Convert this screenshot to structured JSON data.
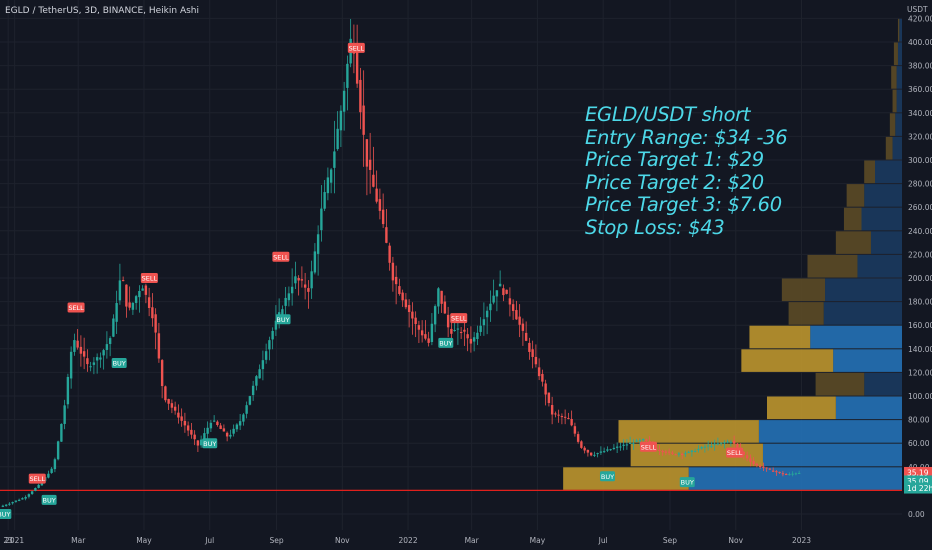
{
  "header": {
    "title": "EGLD / TetherUS, 3D, BINANCE, Heikin Ashi"
  },
  "annotation": [
    "EGLD/USDT short",
    "Entry Range: $34 -36",
    "Price Target 1: $29",
    "Price Target 2: $20",
    "Price Target 3: $7.60",
    "Stop Loss: $43"
  ],
  "colors": {
    "background": "#131722",
    "up": "#26a69a",
    "down": "#ef5350",
    "annotation": "#4dd8e8",
    "horizontal_line": "#e0201c",
    "grid": "#1e222d",
    "axis_text": "#b2b5be"
  },
  "chart_data": {
    "type": "candlestick",
    "style": "Heikin Ashi",
    "symbol": "EGLD / TetherUS",
    "interval": "3D",
    "exchange": "BINANCE",
    "price_unit": "USDT",
    "ylim": [
      -8,
      432
    ],
    "y_ticks": [
      "0.00",
      "20.00",
      "40.00",
      "60.00",
      "80.00",
      "100.00",
      "120.00",
      "140.00",
      "160.00",
      "180.00",
      "200.00",
      "220.00",
      "240.00",
      "260.00",
      "280.00",
      "300.00",
      "320.00",
      "340.00",
      "360.00",
      "380.00",
      "400.00",
      "420.00"
    ],
    "x_ticks": [
      "23",
      "2021",
      "Mar",
      "May",
      "Jul",
      "Sep",
      "Nov",
      "2022",
      "Mar",
      "May",
      "Jul",
      "Sep",
      "Nov",
      "2023"
    ],
    "price_path": [
      [
        "2020-12-20",
        6
      ],
      [
        "2021-01-12",
        14
      ],
      [
        "2021-01-25",
        24
      ],
      [
        "2021-02-08",
        40
      ],
      [
        "2021-02-18",
        90
      ],
      [
        "2021-02-26",
        150
      ],
      [
        "2021-03-12",
        125
      ],
      [
        "2021-03-24",
        135
      ],
      [
        "2021-04-02",
        150
      ],
      [
        "2021-04-12",
        205
      ],
      [
        "2021-04-18",
        170
      ],
      [
        "2021-05-01",
        195
      ],
      [
        "2021-05-12",
        165
      ],
      [
        "2021-05-21",
        100
      ],
      [
        "2021-06-10",
        75
      ],
      [
        "2021-06-22",
        58
      ],
      [
        "2021-07-05",
        80
      ],
      [
        "2021-07-20",
        65
      ],
      [
        "2021-08-01",
        80
      ],
      [
        "2021-08-15",
        115
      ],
      [
        "2021-08-28",
        150
      ],
      [
        "2021-09-08",
        175
      ],
      [
        "2021-09-20",
        200
      ],
      [
        "2021-10-03",
        190
      ],
      [
        "2021-10-15",
        260
      ],
      [
        "2021-10-25",
        300
      ],
      [
        "2021-11-03",
        350
      ],
      [
        "2021-11-12",
        410
      ],
      [
        "2021-11-25",
        300
      ],
      [
        "2021-12-08",
        255
      ],
      [
        "2021-12-20",
        200
      ],
      [
        "2022-01-10",
        160
      ],
      [
        "2022-01-22",
        145
      ],
      [
        "2022-01-31",
        190
      ],
      [
        "2022-02-10",
        155
      ],
      [
        "2022-02-22",
        155
      ],
      [
        "2022-03-03",
        145
      ],
      [
        "2022-03-18",
        175
      ],
      [
        "2022-03-28",
        195
      ],
      [
        "2022-04-10",
        175
      ],
      [
        "2022-04-25",
        140
      ],
      [
        "2022-05-08",
        110
      ],
      [
        "2022-05-16",
        85
      ],
      [
        "2022-06-01",
        80
      ],
      [
        "2022-06-12",
        57
      ],
      [
        "2022-06-22",
        50
      ],
      [
        "2022-07-10",
        55
      ],
      [
        "2022-07-28",
        60
      ],
      [
        "2022-08-10",
        63
      ],
      [
        "2022-08-20",
        55
      ],
      [
        "2022-09-05",
        51
      ],
      [
        "2022-09-20",
        52
      ],
      [
        "2022-10-05",
        57
      ],
      [
        "2022-10-20",
        60
      ],
      [
        "2022-10-30",
        62
      ],
      [
        "2022-11-08",
        52
      ],
      [
        "2022-11-20",
        42
      ],
      [
        "2022-12-05",
        37
      ],
      [
        "2022-12-20",
        33
      ],
      [
        "2022-12-30",
        35
      ]
    ],
    "signals": [
      {
        "label": "BUY",
        "date": "2020-12-22",
        "price": 0
      },
      {
        "label": "SELL",
        "date": "2021-01-22",
        "price": 30
      },
      {
        "label": "BUY",
        "date": "2021-02-02",
        "price": 12
      },
      {
        "label": "SELL",
        "date": "2021-02-27",
        "price": 175
      },
      {
        "label": "BUY",
        "date": "2021-04-08",
        "price": 128
      },
      {
        "label": "SELL",
        "date": "2021-05-06",
        "price": 200
      },
      {
        "label": "BUY",
        "date": "2021-07-01",
        "price": 60
      },
      {
        "label": "SELL",
        "date": "2021-09-05",
        "price": 218
      },
      {
        "label": "BUY",
        "date": "2021-09-07",
        "price": 165
      },
      {
        "label": "SELL",
        "date": "2021-11-14",
        "price": 395
      },
      {
        "label": "BUY",
        "date": "2022-02-05",
        "price": 145
      },
      {
        "label": "SELL",
        "date": "2022-02-17",
        "price": 166
      },
      {
        "label": "BUY",
        "date": "2022-07-05",
        "price": 32
      },
      {
        "label": "SELL",
        "date": "2022-08-12",
        "price": 57
      },
      {
        "label": "BUY",
        "date": "2022-09-17",
        "price": 27
      },
      {
        "label": "SELL",
        "date": "2022-10-31",
        "price": 52
      }
    ],
    "horizontal_line": 20,
    "volume_profile": [
      {
        "price_range": [
          400,
          420
        ],
        "up": 2,
        "down": 1
      },
      {
        "price_range": [
          380,
          400
        ],
        "up": 3,
        "down": 3
      },
      {
        "price_range": [
          360,
          380
        ],
        "up": 4,
        "down": 4
      },
      {
        "price_range": [
          340,
          360
        ],
        "up": 4,
        "down": 3
      },
      {
        "price_range": [
          320,
          340
        ],
        "up": 5,
        "down": 4
      },
      {
        "price_range": [
          300,
          320
        ],
        "up": 7,
        "down": 5
      },
      {
        "price_range": [
          280,
          300
        ],
        "up": 20,
        "down": 8
      },
      {
        "price_range": [
          260,
          280
        ],
        "up": 28,
        "down": 13
      },
      {
        "price_range": [
          240,
          260
        ],
        "up": 30,
        "down": 13
      },
      {
        "price_range": [
          220,
          240
        ],
        "up": 23,
        "down": 26
      },
      {
        "price_range": [
          200,
          220
        ],
        "up": 33,
        "down": 37
      },
      {
        "price_range": [
          180,
          200
        ],
        "up": 57,
        "down": 32
      },
      {
        "price_range": [
          160,
          180
        ],
        "up": 58,
        "down": 26
      },
      {
        "price_range": [
          140,
          160
        ],
        "up": 68,
        "down": 45
      },
      {
        "price_range": [
          120,
          140
        ],
        "up": 51,
        "down": 68
      },
      {
        "price_range": [
          100,
          120
        ],
        "up": 28,
        "down": 36
      },
      {
        "price_range": [
          80,
          100
        ],
        "up": 49,
        "down": 51
      },
      {
        "price_range": [
          60,
          80
        ],
        "up": 106,
        "down": 104
      },
      {
        "price_range": [
          40,
          60
        ],
        "up": 103,
        "down": 98
      },
      {
        "price_range": [
          20,
          40
        ],
        "up": 158,
        "down": 93
      }
    ],
    "price_labels": [
      {
        "text": "35.19",
        "price": 35.19,
        "color": "#ef5350"
      },
      {
        "text": "35.09",
        "price": 28,
        "color": "#26a69a"
      },
      {
        "text": "1d 22h",
        "price": 22,
        "color": "#26a69a"
      }
    ]
  }
}
